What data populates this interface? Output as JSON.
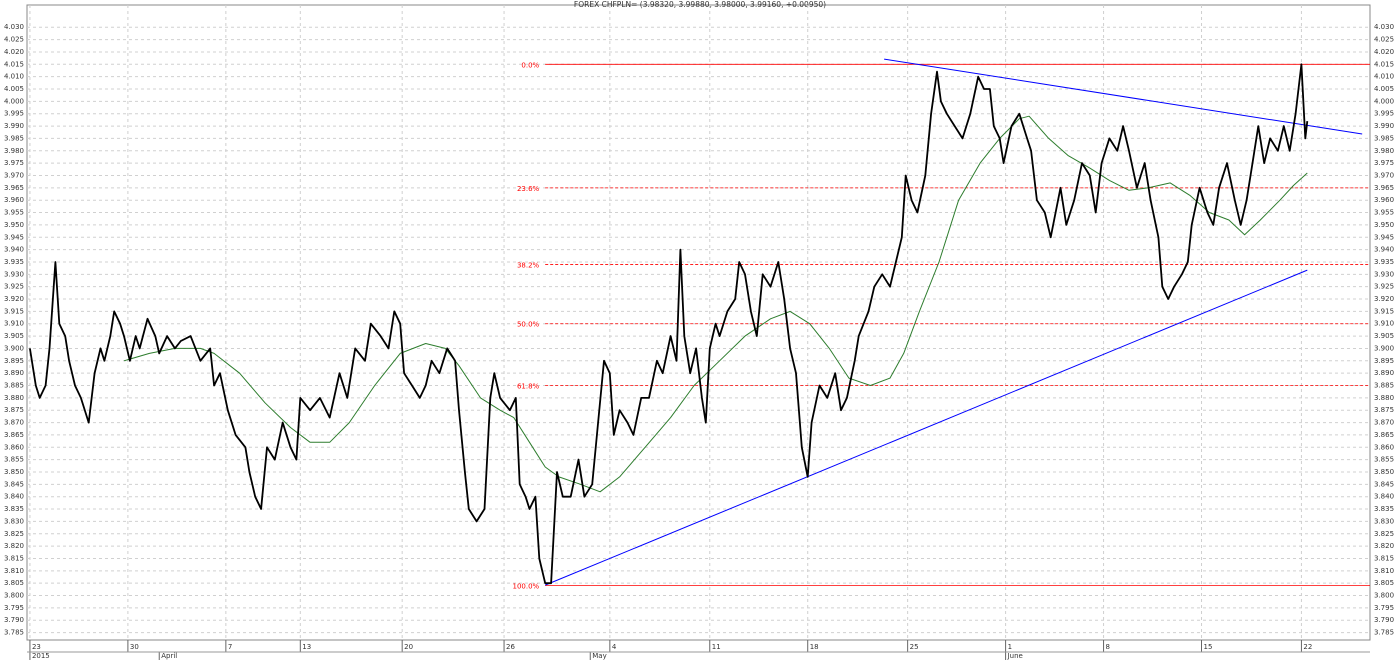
{
  "chart_data": {
    "type": "line",
    "title": "FOREX CHFPLN= (3.98320, 3.99880, 3.98000, 3.99160, +0.00950)",
    "xlim": [
      -0.15,
      68.4
    ],
    "ylim": [
      3.782,
      4.039
    ],
    "grid": true,
    "xticks": [
      {
        "value": 0,
        "label": "23"
      },
      {
        "value": 5,
        "label": "30"
      },
      {
        "value": 10,
        "label": "7"
      },
      {
        "value": 13.8,
        "label": "13"
      },
      {
        "value": 19,
        "label": "20"
      },
      {
        "value": 24.2,
        "label": "26"
      },
      {
        "value": 29.6,
        "label": "4"
      },
      {
        "value": 34.7,
        "label": "11"
      },
      {
        "value": 39.7,
        "label": "18"
      },
      {
        "value": 44.8,
        "label": "25"
      },
      {
        "value": 49.8,
        "label": "1"
      },
      {
        "value": 54.8,
        "label": "8"
      },
      {
        "value": 59.8,
        "label": "15"
      },
      {
        "value": 64.9,
        "label": "22"
      }
    ],
    "month_ticks": [
      {
        "value": 0,
        "label": "2015"
      },
      {
        "value": 6.6,
        "label": "April"
      },
      {
        "value": 28.6,
        "label": "May"
      },
      {
        "value": 49.8,
        "label": "June"
      }
    ],
    "yticks": [
      3.785,
      {
        "value": 3.79,
        "label": "3.790"
      },
      3.795,
      {
        "value": 3.8,
        "label": "3.800"
      },
      3.805,
      {
        "value": 3.81,
        "label": "3.810"
      },
      3.815,
      {
        "value": 3.82,
        "label": "3.820"
      },
      3.825,
      {
        "value": 3.83,
        "label": "3.830"
      },
      3.835,
      {
        "value": 3.84,
        "label": "3.840"
      },
      3.845,
      {
        "value": 3.85,
        "label": "3.850"
      },
      3.855,
      {
        "value": 3.86,
        "label": "3.860"
      },
      3.865,
      {
        "value": 3.87,
        "label": "3.870"
      },
      3.875,
      {
        "value": 3.88,
        "label": "3.880"
      },
      3.885,
      {
        "value": 3.89,
        "label": "3.890"
      },
      3.895,
      {
        "value": 3.9,
        "label": "3.900"
      },
      3.905,
      {
        "value": 3.91,
        "label": "3.910"
      },
      3.915,
      {
        "value": 3.92,
        "label": "3.920"
      },
      3.925,
      {
        "value": 3.93,
        "label": "3.930"
      },
      3.935,
      {
        "value": 3.94,
        "label": "3.940"
      },
      3.945,
      {
        "value": 3.95,
        "label": "3.950"
      },
      3.955,
      {
        "value": 3.96,
        "label": "3.960"
      },
      3.965,
      {
        "value": 3.97,
        "label": "3.970"
      },
      3.975,
      {
        "value": 3.98,
        "label": "3.980"
      },
      3.985,
      {
        "value": 3.99,
        "label": "3.990"
      },
      3.995,
      {
        "value": 4.0,
        "label": "4.000"
      },
      4.005,
      {
        "value": 4.01,
        "label": "4.010"
      },
      4.015,
      {
        "value": 4.02,
        "label": "4.020"
      },
      4.025,
      {
        "value": 4.03,
        "label": "4.030"
      }
    ],
    "series": [
      {
        "color": "#000000",
        "width": 1.8,
        "x": [
          0,
          0.3,
          0.5,
          0.8,
          1.0,
          1.3,
          1.5,
          1.8,
          2.0,
          2.3,
          2.6,
          3.0,
          3.3,
          3.6,
          3.8,
          4.1,
          4.3,
          4.6,
          4.8,
          5.1,
          5.4,
          5.6,
          6.0,
          6.4,
          6.6,
          7.0,
          7.4,
          7.7,
          8.2,
          8.7,
          9.2,
          9.4,
          9.7,
          10.1,
          10.5,
          11.0,
          11.2,
          11.5,
          11.8,
          12.1,
          12.5,
          12.9,
          13.3,
          13.6,
          13.8,
          14.3,
          14.8,
          15.3,
          15.8,
          16.2,
          16.6,
          17.1,
          17.4,
          17.9,
          18.3,
          18.6,
          18.9,
          19.1,
          19.5,
          19.9,
          20.2,
          20.5,
          20.9,
          21.3,
          21.7,
          21.9,
          22.2,
          22.4,
          22.8,
          23.2,
          23.5,
          23.7,
          24.0,
          24.5,
          24.8,
          25.0,
          25.3,
          25.5,
          25.8,
          26.0,
          26.3,
          26.6,
          26.9,
          27.2,
          27.6,
          28.0,
          28.3,
          28.7,
          29.0,
          29.3,
          29.6,
          29.8,
          30.1,
          30.5,
          30.8,
          31.2,
          31.6,
          32.0,
          32.3,
          32.7,
          33.0,
          33.2,
          33.4,
          33.7,
          34.0,
          34.3,
          34.5,
          34.7,
          35.0,
          35.2,
          35.6,
          36.0,
          36.2,
          36.5,
          36.8,
          37.1,
          37.4,
          37.8,
          38.2,
          38.5,
          38.8,
          39.1,
          39.4,
          39.7,
          39.9,
          40.3,
          40.7,
          41.1,
          41.4,
          41.7,
          42.1,
          42.3,
          42.8,
          43.1,
          43.5,
          43.9,
          44.2,
          44.5,
          44.7,
          45.0,
          45.3,
          45.7,
          46.0,
          46.3,
          46.5,
          46.8,
          47.2,
          47.6,
          48.0,
          48.4,
          48.7,
          49.0,
          49.2,
          49.5,
          49.7,
          50.1,
          50.5,
          50.9,
          51.1,
          51.4,
          51.8,
          52.1,
          52.6,
          52.9,
          53.3,
          53.7,
          54.1,
          54.4,
          54.7,
          55.1,
          55.5,
          55.8,
          56.1,
          56.5,
          56.9,
          57.2,
          57.6,
          57.8,
          58.1,
          58.4,
          58.8,
          59.1,
          59.3,
          59.7,
          60.1,
          60.4,
          60.7,
          61.1,
          61.5,
          61.8,
          62.1,
          62.4,
          62.7,
          63.0,
          63.3,
          63.7,
          64.0,
          64.3,
          64.6,
          64.9,
          65.1,
          65.2
        ],
        "values": [
          3.9,
          3.885,
          3.88,
          3.885,
          3.9,
          3.935,
          3.91,
          3.905,
          3.895,
          3.885,
          3.88,
          3.87,
          3.89,
          3.9,
          3.895,
          3.905,
          3.915,
          3.91,
          3.905,
          3.895,
          3.905,
          3.9,
          3.912,
          3.905,
          3.898,
          3.905,
          3.9,
          3.903,
          3.905,
          3.895,
          3.9,
          3.885,
          3.89,
          3.875,
          3.865,
          3.86,
          3.85,
          3.84,
          3.835,
          3.86,
          3.855,
          3.87,
          3.86,
          3.855,
          3.88,
          3.875,
          3.88,
          3.872,
          3.89,
          3.88,
          3.9,
          3.895,
          3.91,
          3.905,
          3.9,
          3.915,
          3.91,
          3.89,
          3.885,
          3.88,
          3.885,
          3.895,
          3.89,
          3.9,
          3.895,
          3.875,
          3.85,
          3.835,
          3.83,
          3.835,
          3.88,
          3.89,
          3.88,
          3.875,
          3.88,
          3.845,
          3.84,
          3.835,
          3.84,
          3.815,
          3.805,
          3.805,
          3.85,
          3.84,
          3.84,
          3.855,
          3.84,
          3.845,
          3.87,
          3.895,
          3.89,
          3.865,
          3.875,
          3.87,
          3.865,
          3.88,
          3.88,
          3.895,
          3.89,
          3.905,
          3.895,
          3.94,
          3.905,
          3.89,
          3.9,
          3.88,
          3.87,
          3.9,
          3.91,
          3.905,
          3.915,
          3.92,
          3.935,
          3.93,
          3.915,
          3.905,
          3.93,
          3.925,
          3.935,
          3.92,
          3.9,
          3.89,
          3.86,
          3.848,
          3.87,
          3.885,
          3.88,
          3.89,
          3.875,
          3.88,
          3.895,
          3.905,
          3.915,
          3.925,
          3.93,
          3.925,
          3.935,
          3.945,
          3.97,
          3.96,
          3.955,
          3.97,
          3.995,
          4.012,
          4.0,
          3.995,
          3.99,
          3.985,
          3.995,
          4.01,
          4.005,
          4.005,
          3.99,
          3.985,
          3.975,
          3.99,
          3.995,
          3.985,
          3.98,
          3.96,
          3.955,
          3.945,
          3.965,
          3.95,
          3.96,
          3.975,
          3.97,
          3.955,
          3.975,
          3.985,
          3.98,
          3.99,
          3.98,
          3.965,
          3.975,
          3.96,
          3.945,
          3.925,
          3.92,
          3.925,
          3.93,
          3.935,
          3.95,
          3.965,
          3.955,
          3.95,
          3.965,
          3.975,
          3.96,
          3.95,
          3.96,
          3.975,
          3.99,
          3.975,
          3.985,
          3.98,
          3.99,
          3.98,
          3.995,
          4.015,
          3.985,
          3.992
        ]
      },
      {
        "color": "#2e7d2e",
        "width": 1,
        "x": [
          4.8,
          6.1,
          7.4,
          8.7,
          9.4,
          10.7,
          12.0,
          13.3,
          14.3,
          15.3,
          16.3,
          17.6,
          18.9,
          20.2,
          21.2,
          21.9,
          23.0,
          24.0,
          24.7,
          25.5,
          26.3,
          27.0,
          28.1,
          29.1,
          30.1,
          31.4,
          32.7,
          33.9,
          35.2,
          36.5,
          37.8,
          38.8,
          39.8,
          40.8,
          41.8,
          42.9,
          43.9,
          44.6,
          45.4,
          46.4,
          47.4,
          48.5,
          49.5,
          50.5,
          51.0,
          52.0,
          53.0,
          54.1,
          55.1,
          56.1,
          57.1,
          58.2,
          59.2,
          60.2,
          61.2,
          62.0,
          62.8,
          63.8,
          64.5,
          65.2
        ],
        "values": [
          3.895,
          3.898,
          3.9,
          3.9,
          3.898,
          3.89,
          3.878,
          3.868,
          3.862,
          3.862,
          3.87,
          3.885,
          3.898,
          3.902,
          3.9,
          3.893,
          3.88,
          3.875,
          3.872,
          3.862,
          3.852,
          3.848,
          3.845,
          3.842,
          3.848,
          3.86,
          3.872,
          3.885,
          3.895,
          3.905,
          3.912,
          3.915,
          3.91,
          3.9,
          3.888,
          3.885,
          3.888,
          3.898,
          3.915,
          3.935,
          3.96,
          3.975,
          3.985,
          3.993,
          3.994,
          3.985,
          3.978,
          3.973,
          3.968,
          3.964,
          3.965,
          3.967,
          3.962,
          3.955,
          3.952,
          3.946,
          3.952,
          3.96,
          3.966,
          3.971
        ]
      }
    ],
    "fib_start": 26.3,
    "fib_color": "#ff0000",
    "fib_levels": [
      {
        "value": 4.015,
        "label": "0.0%",
        "solid": true
      },
      {
        "value": 3.965,
        "label": "23.6%",
        "solid": false
      },
      {
        "value": 3.934,
        "label": "38.2%",
        "solid": false
      },
      {
        "value": 3.91,
        "label": "50.0%",
        "solid": false
      },
      {
        "value": 3.885,
        "label": "61.8%",
        "solid": false
      },
      {
        "value": 3.804,
        "label": "100.0%",
        "solid": true
      }
    ],
    "trendlines": [
      {
        "x": [
          43.6,
          68.0
        ],
        "y": [
          4.0171,
          3.9868
        ],
        "color": "#0000ff"
      },
      {
        "x": [
          26.3,
          65.2
        ],
        "y": [
          3.8042,
          3.9317
        ],
        "color": "#0000ff"
      }
    ]
  }
}
